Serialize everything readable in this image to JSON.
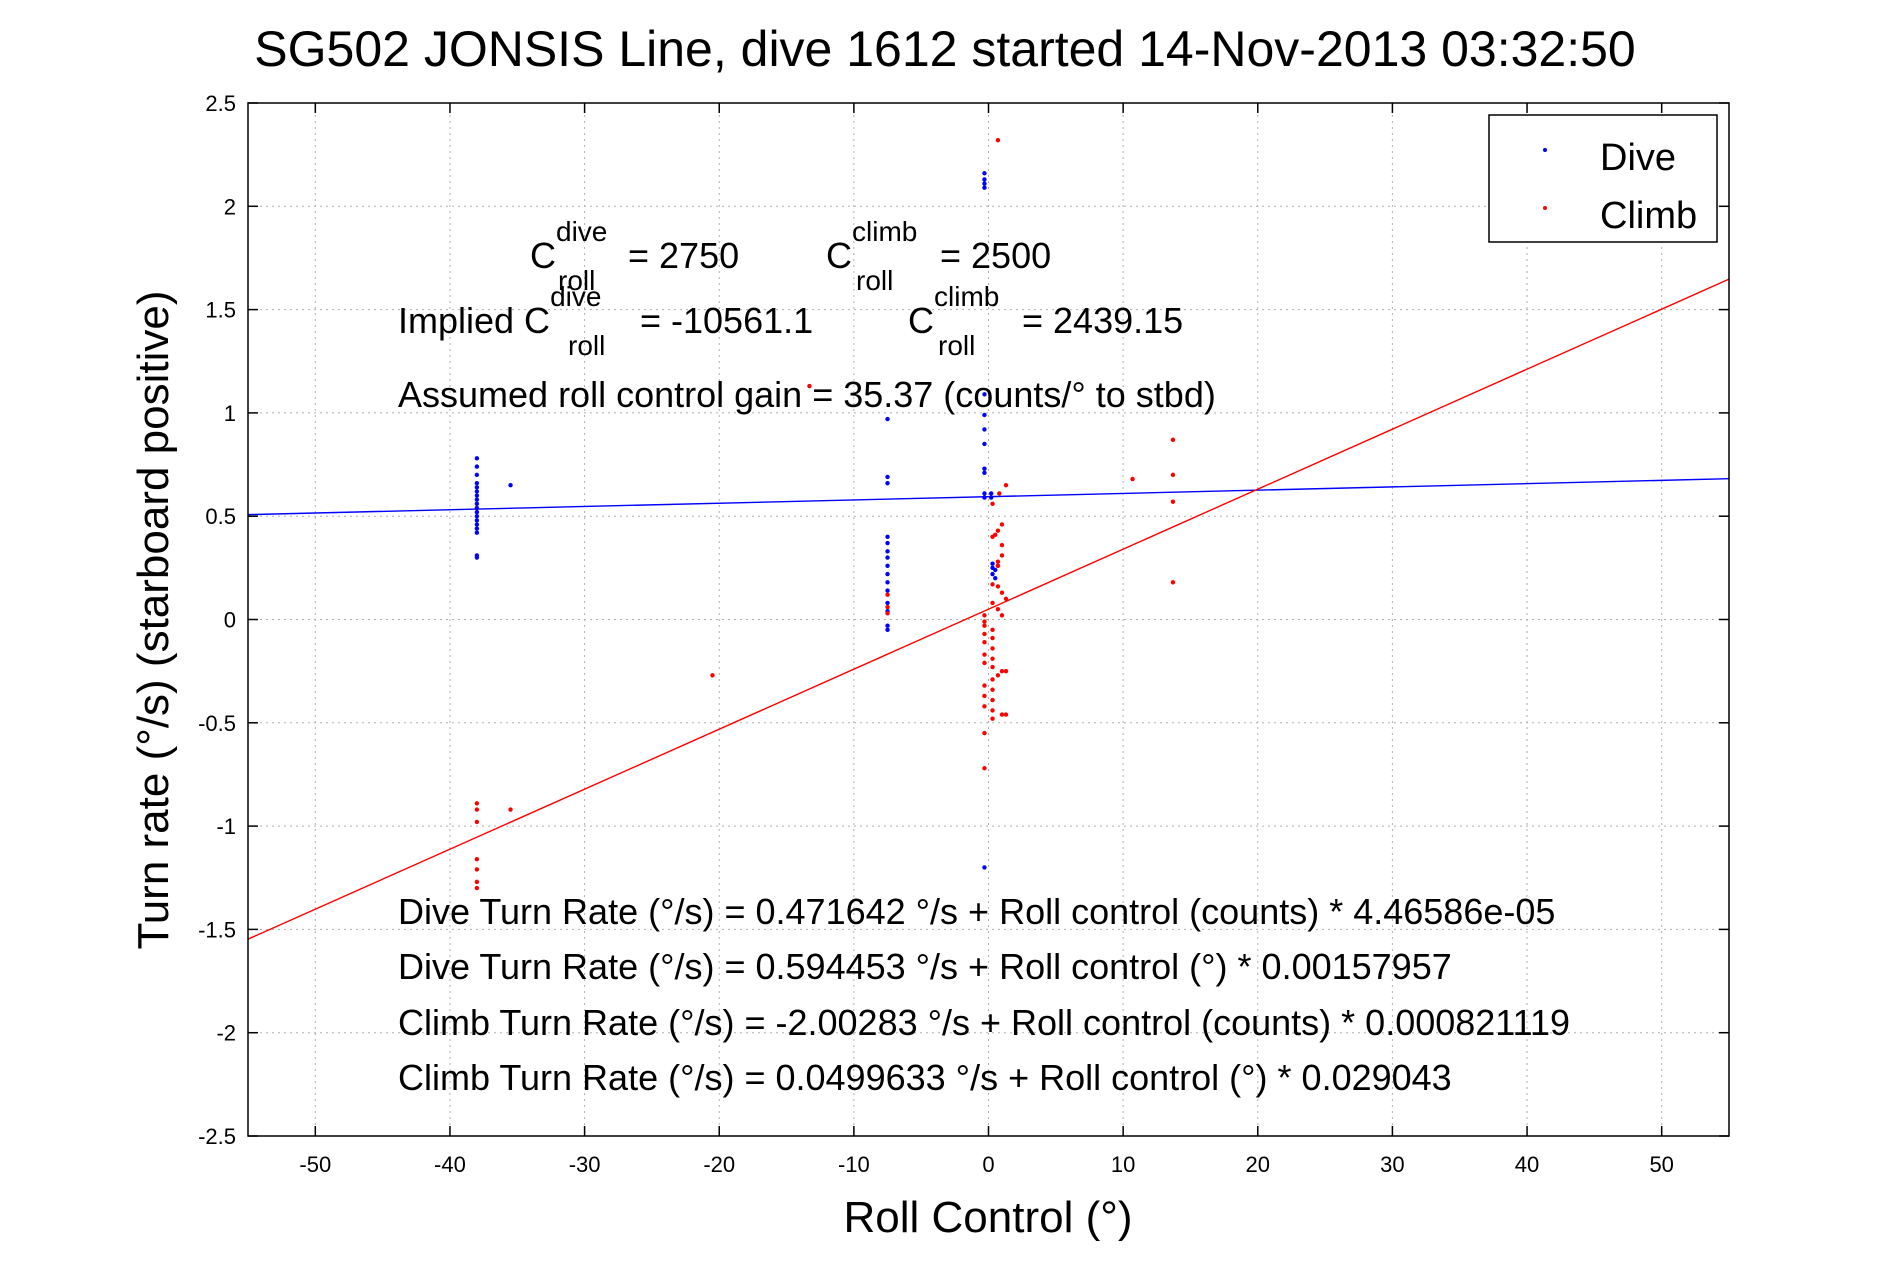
{
  "chart_data": {
    "type": "scatter",
    "title": "SG502 JONSIS Line, dive 1612 started 14-Nov-2013 03:32:50",
    "xlabel": "Roll Control (°)",
    "ylabel": "Turn rate (°/s) (starboard positive)",
    "xlim": [
      -55,
      55
    ],
    "ylim": [
      -2.5,
      2.5
    ],
    "xticks": [
      -50,
      -40,
      -30,
      -20,
      -10,
      0,
      10,
      20,
      30,
      40,
      50
    ],
    "yticks": [
      -2.5,
      -2,
      -1.5,
      -1,
      -0.5,
      0,
      0.5,
      1,
      1.5,
      2,
      2.5
    ],
    "xtick_labels": [
      "-50",
      "-40",
      "-30",
      "-20",
      "-10",
      "0",
      "10",
      "20",
      "30",
      "40",
      "50"
    ],
    "ytick_labels": [
      "-2.5",
      "-2",
      "-1.5",
      "-1",
      "-0.5",
      "0",
      "0.5",
      "1",
      "1.5",
      "2",
      "2.5"
    ],
    "grid": true,
    "legend_position": "top-right",
    "series": [
      {
        "name": "Dive",
        "color": "#0000ff",
        "points": [
          [
            -38,
            0.3
          ],
          [
            -38,
            0.31
          ],
          [
            -38,
            0.42
          ],
          [
            -38,
            0.44
          ],
          [
            -38,
            0.46
          ],
          [
            -38,
            0.48
          ],
          [
            -38,
            0.5
          ],
          [
            -38,
            0.52
          ],
          [
            -38,
            0.54
          ],
          [
            -38,
            0.56
          ],
          [
            -38,
            0.58
          ],
          [
            -38,
            0.6
          ],
          [
            -38,
            0.62
          ],
          [
            -38,
            0.64
          ],
          [
            -38,
            0.66
          ],
          [
            -38,
            0.7
          ],
          [
            -38,
            0.74
          ],
          [
            -38,
            0.78
          ],
          [
            -35.5,
            0.65
          ],
          [
            -7.5,
            0.97
          ],
          [
            -7.5,
            0.69
          ],
          [
            -7.5,
            0.66
          ],
          [
            -7.5,
            0.4
          ],
          [
            -7.5,
            0.37
          ],
          [
            -7.5,
            0.33
          ],
          [
            -7.5,
            0.3
          ],
          [
            -7.5,
            0.26
          ],
          [
            -7.5,
            0.22
          ],
          [
            -7.5,
            0.18
          ],
          [
            -7.5,
            0.14
          ],
          [
            -7.5,
            0.08
          ],
          [
            -7.5,
            0.04
          ],
          [
            -7.5,
            -0.03
          ],
          [
            -7.5,
            -0.05
          ],
          [
            -0.3,
            2.16
          ],
          [
            -0.3,
            2.13
          ],
          [
            -0.3,
            2.11
          ],
          [
            -0.3,
            2.09
          ],
          [
            -0.3,
            1.09
          ],
          [
            -0.3,
            0.99
          ],
          [
            -0.3,
            0.92
          ],
          [
            -0.3,
            0.85
          ],
          [
            -0.3,
            0.73
          ],
          [
            -0.3,
            0.71
          ],
          [
            -0.3,
            0.61
          ],
          [
            -0.3,
            0.59
          ],
          [
            0.2,
            0.61
          ],
          [
            0.2,
            0.59
          ],
          [
            0.3,
            0.27
          ],
          [
            0.3,
            0.25
          ],
          [
            0.3,
            0.22
          ],
          [
            0.5,
            0.24
          ],
          [
            0.5,
            0.2
          ],
          [
            0.7,
            0.26
          ],
          [
            -0.3,
            -1.2
          ]
        ],
        "fit": {
          "intercept": 0.594453,
          "slope": 0.00157957
        }
      },
      {
        "name": "Climb",
        "color": "#ff0000",
        "points": [
          [
            0.7,
            2.32
          ],
          [
            -13.3,
            1.13
          ],
          [
            13.7,
            0.87
          ],
          [
            10.7,
            0.68
          ],
          [
            13.7,
            0.7
          ],
          [
            13.7,
            0.57
          ],
          [
            13.7,
            0.18
          ],
          [
            -20.5,
            -0.27
          ],
          [
            -38,
            -0.89
          ],
          [
            -38,
            -0.92
          ],
          [
            -38,
            -0.98
          ],
          [
            -35.5,
            -0.92
          ],
          [
            -38,
            -1.16
          ],
          [
            -38,
            -1.21
          ],
          [
            -38,
            -1.27
          ],
          [
            -38,
            -1.3
          ],
          [
            -7.5,
            0.12
          ],
          [
            -7.5,
            0.06
          ],
          [
            -7.5,
            0.03
          ],
          [
            1.3,
            0.65
          ],
          [
            0.8,
            0.61
          ],
          [
            0.3,
            0.56
          ],
          [
            1.0,
            0.46
          ],
          [
            0.7,
            0.43
          ],
          [
            0.5,
            0.41
          ],
          [
            0.3,
            0.4
          ],
          [
            1.0,
            0.36
          ],
          [
            1.0,
            0.31
          ],
          [
            0.7,
            0.28
          ],
          [
            0.7,
            0.26
          ],
          [
            0.3,
            0.17
          ],
          [
            0.7,
            0.16
          ],
          [
            1.0,
            0.13
          ],
          [
            1.3,
            0.1
          ],
          [
            0.3,
            0.08
          ],
          [
            0.7,
            0.05
          ],
          [
            1.0,
            0.02
          ],
          [
            -0.3,
            0.02
          ],
          [
            -0.3,
            -0.01
          ],
          [
            -0.3,
            -0.03
          ],
          [
            0.3,
            -0.05
          ],
          [
            -0.3,
            -0.07
          ],
          [
            0.3,
            -0.09
          ],
          [
            -0.3,
            -0.11
          ],
          [
            0.3,
            -0.14
          ],
          [
            -0.3,
            -0.17
          ],
          [
            0.3,
            -0.19
          ],
          [
            -0.3,
            -0.21
          ],
          [
            0.3,
            -0.23
          ],
          [
            1.0,
            -0.25
          ],
          [
            1.3,
            -0.25
          ],
          [
            0.7,
            -0.27
          ],
          [
            0.3,
            -0.29
          ],
          [
            -0.3,
            -0.32
          ],
          [
            0.3,
            -0.34
          ],
          [
            -0.3,
            -0.37
          ],
          [
            0.3,
            -0.39
          ],
          [
            -0.3,
            -0.42
          ],
          [
            0.3,
            -0.44
          ],
          [
            1.0,
            -0.46
          ],
          [
            1.3,
            -0.46
          ],
          [
            0.3,
            -0.48
          ],
          [
            -0.3,
            -0.55
          ],
          [
            -0.3,
            -0.72
          ]
        ],
        "fit": {
          "intercept": 0.0499633,
          "slope": 0.029043
        }
      }
    ],
    "annotations": {
      "c_dive_base": "C",
      "c_dive_sup": "dive",
      "c_dive_sub": "roll",
      "c_dive_val": "= 2750",
      "c_climb_base": "C",
      "c_climb_sup": "climb",
      "c_climb_sub": "roll",
      "c_climb_val": "= 2500",
      "implied_prefix": "Implied C",
      "implied_dive_sup": "dive",
      "implied_dive_sub": "roll",
      "implied_dive_val": "= -10561.1",
      "implied_climb_base": "C",
      "implied_climb_sup": "climb",
      "implied_climb_sub": "roll",
      "implied_climb_val": "= 2439.15",
      "gain": "Assumed roll control gain = 35.37 (counts/° to stbd)",
      "eq1": "Dive Turn Rate (°/s) = 0.471642 °/s + Roll control (counts) * 4.46586e-05",
      "eq2": "Dive Turn Rate (°/s) = 0.594453 °/s + Roll control (°) * 0.00157957",
      "eq3": "Climb Turn Rate (°/s) = -2.00283 °/s + Roll control (counts) * 0.000821119",
      "eq4": "Climb Turn Rate (°/s) = 0.0499633 °/s + Roll control (°) * 0.029043"
    }
  }
}
